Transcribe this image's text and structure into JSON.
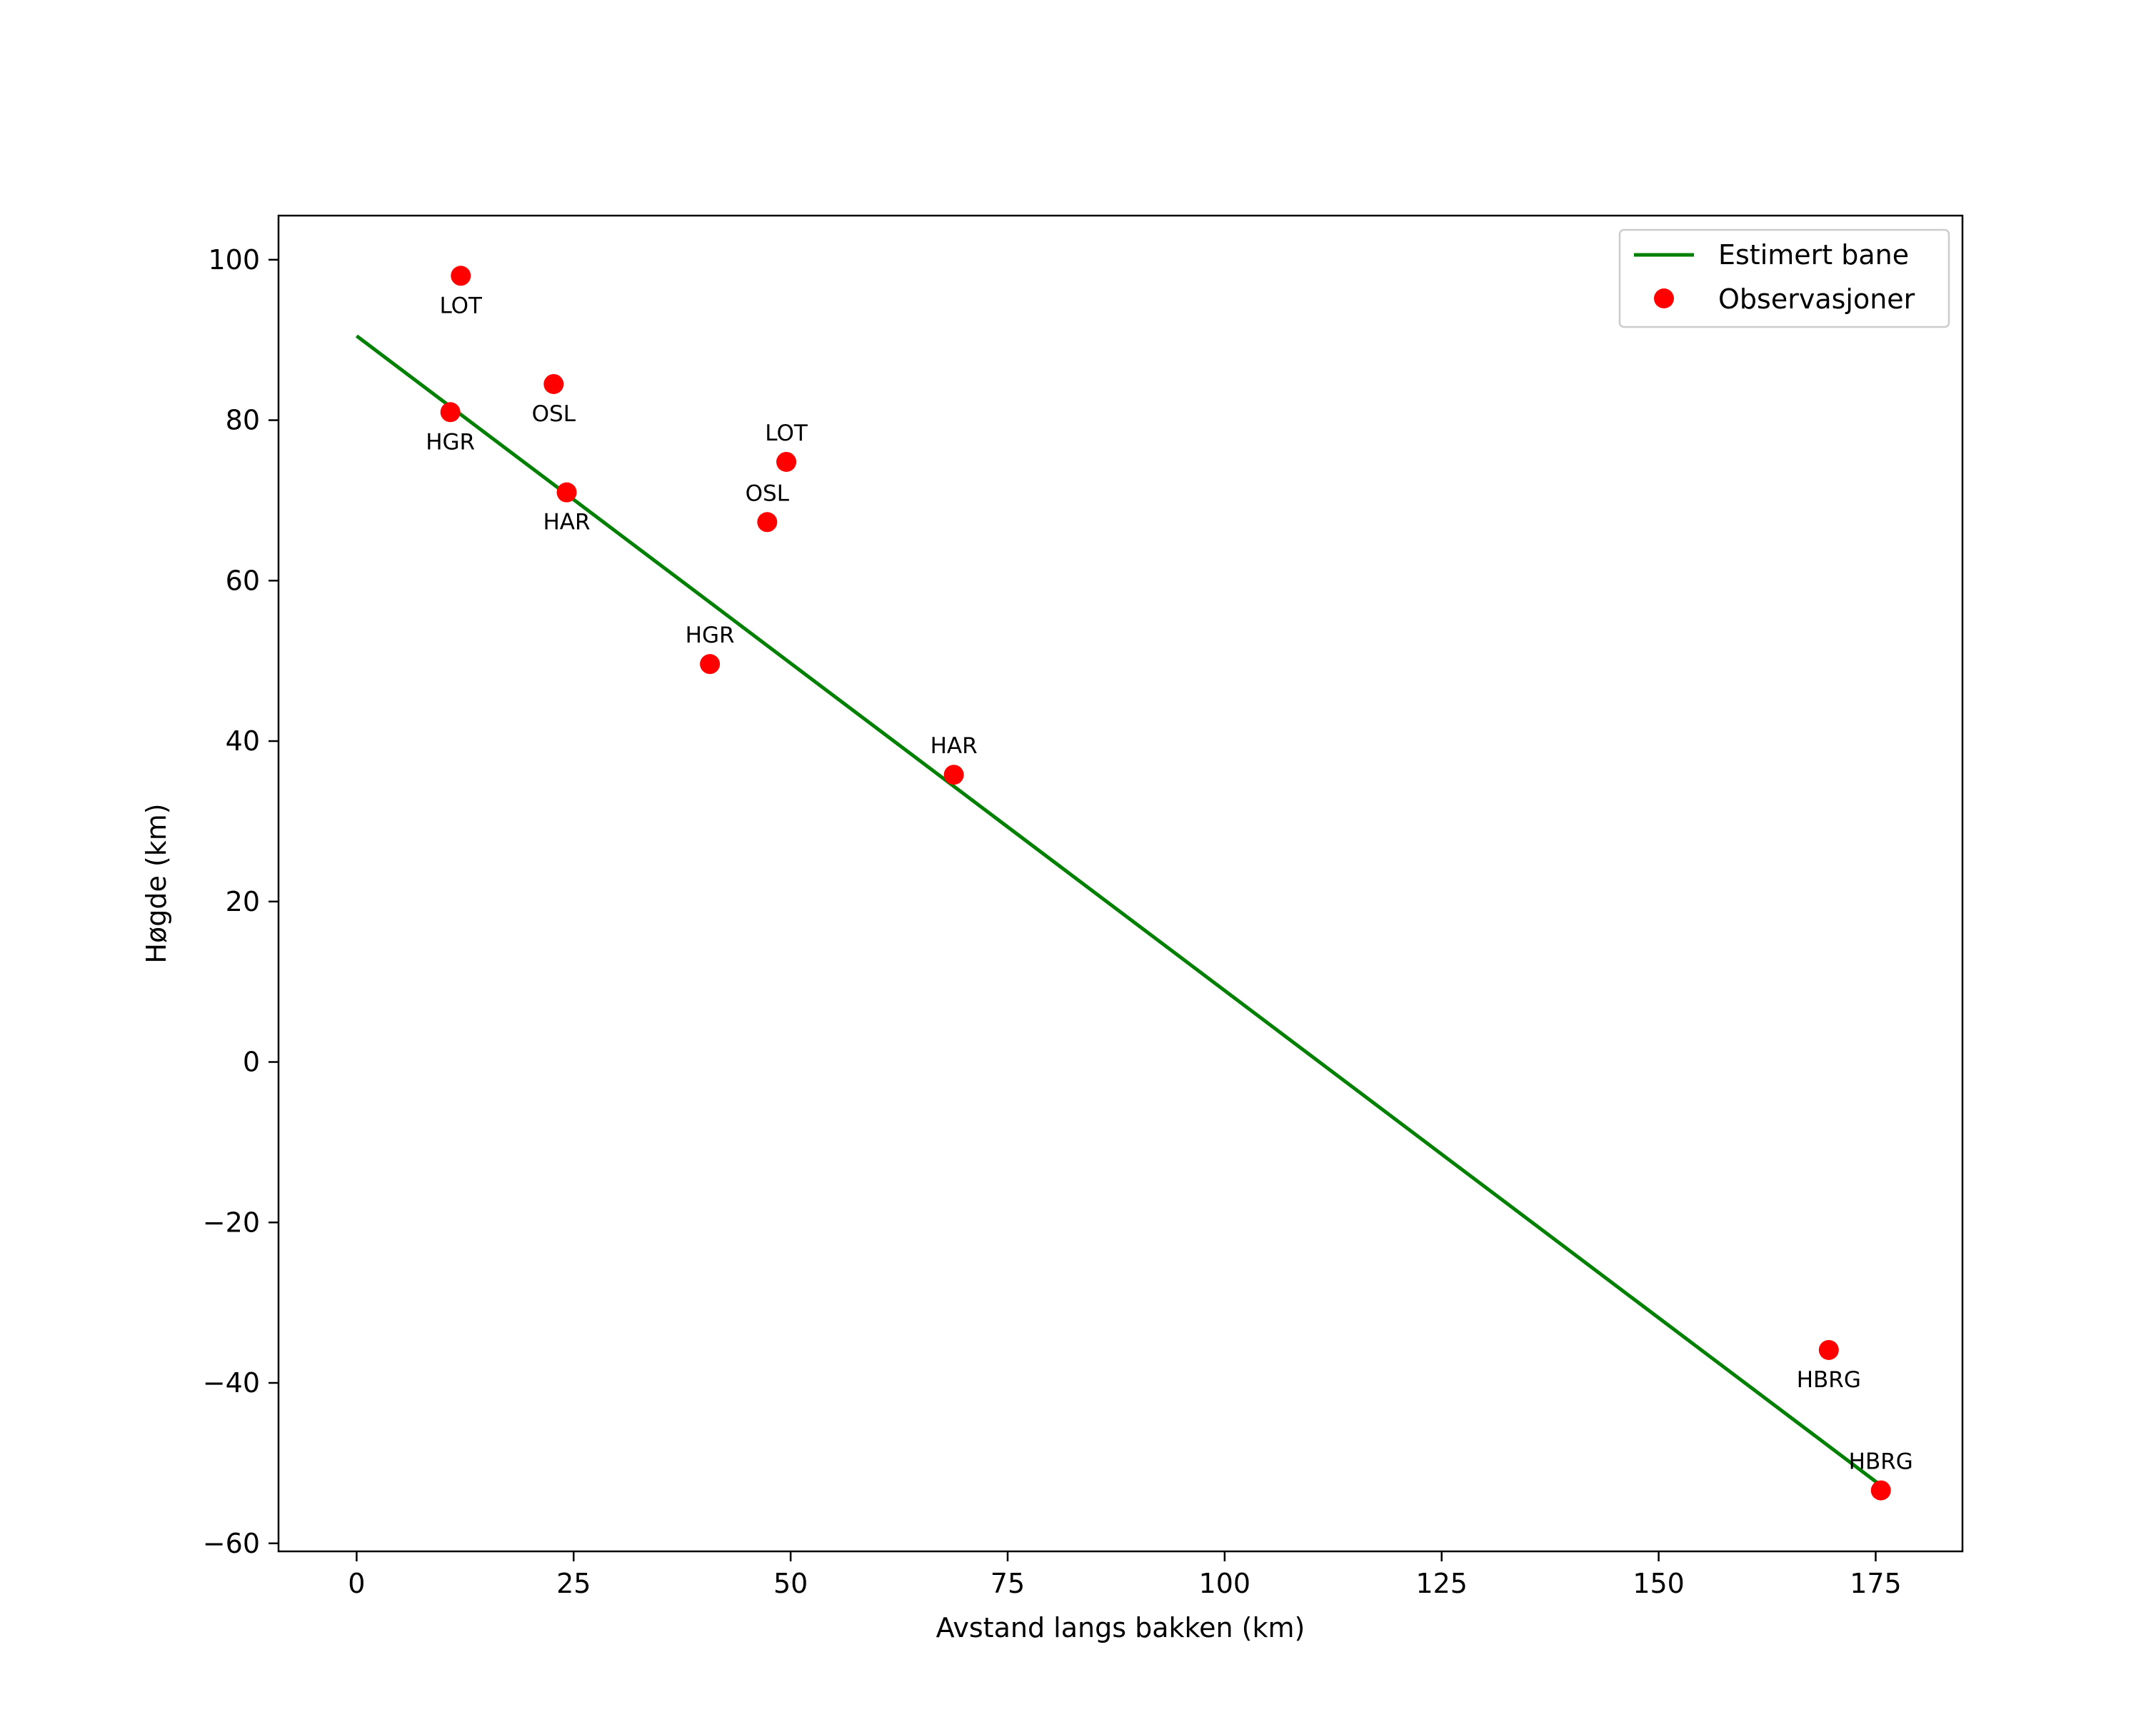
{
  "chart_data": {
    "type": "scatter",
    "title": "",
    "xlabel": "Avstand langs bakken (km)",
    "ylabel": "Høgde (km)",
    "xlim": [
      -9,
      185
    ],
    "ylim": [
      -61,
      105.5
    ],
    "xticks": [
      0,
      25,
      50,
      75,
      100,
      125,
      150,
      175
    ],
    "yticks": [
      -60,
      -40,
      -20,
      0,
      20,
      40,
      60,
      80,
      100
    ],
    "xtick_labels": [
      "0",
      "25",
      "50",
      "75",
      "100",
      "125",
      "150",
      "175"
    ],
    "ytick_labels": [
      "−60",
      "−40",
      "−20",
      "0",
      "20",
      "40",
      "60",
      "80",
      "100"
    ],
    "grid": false,
    "legend_position": "top-right",
    "series": [
      {
        "name": "Estimert bane",
        "kind": "line",
        "color": "#008000",
        "x": [
          0,
          175.5
        ],
        "y": [
          90.5,
          -52.7
        ]
      },
      {
        "name": "Observasjoner",
        "kind": "scatter",
        "color": "#ff0000",
        "points": [
          {
            "x": 12.0,
            "y": 98.0,
            "label": "LOT",
            "label_pos": "below"
          },
          {
            "x": 10.8,
            "y": 81.0,
            "label": "HGR",
            "label_pos": "below"
          },
          {
            "x": 22.7,
            "y": 84.5,
            "label": "OSL",
            "label_pos": "below"
          },
          {
            "x": 24.2,
            "y": 71.0,
            "label": "HAR",
            "label_pos": "below"
          },
          {
            "x": 49.5,
            "y": 74.8,
            "label": "LOT",
            "label_pos": "above"
          },
          {
            "x": 47.3,
            "y": 67.3,
            "label": "OSL",
            "label_pos": "above"
          },
          {
            "x": 40.7,
            "y": 49.6,
            "label": "HGR",
            "label_pos": "above"
          },
          {
            "x": 68.8,
            "y": 35.8,
            "label": "HAR",
            "label_pos": "above"
          },
          {
            "x": 169.6,
            "y": -35.9,
            "label": "HBRG",
            "label_pos": "below"
          },
          {
            "x": 175.6,
            "y": -53.4,
            "label": "HBRG",
            "label_pos": "above"
          }
        ]
      }
    ]
  }
}
